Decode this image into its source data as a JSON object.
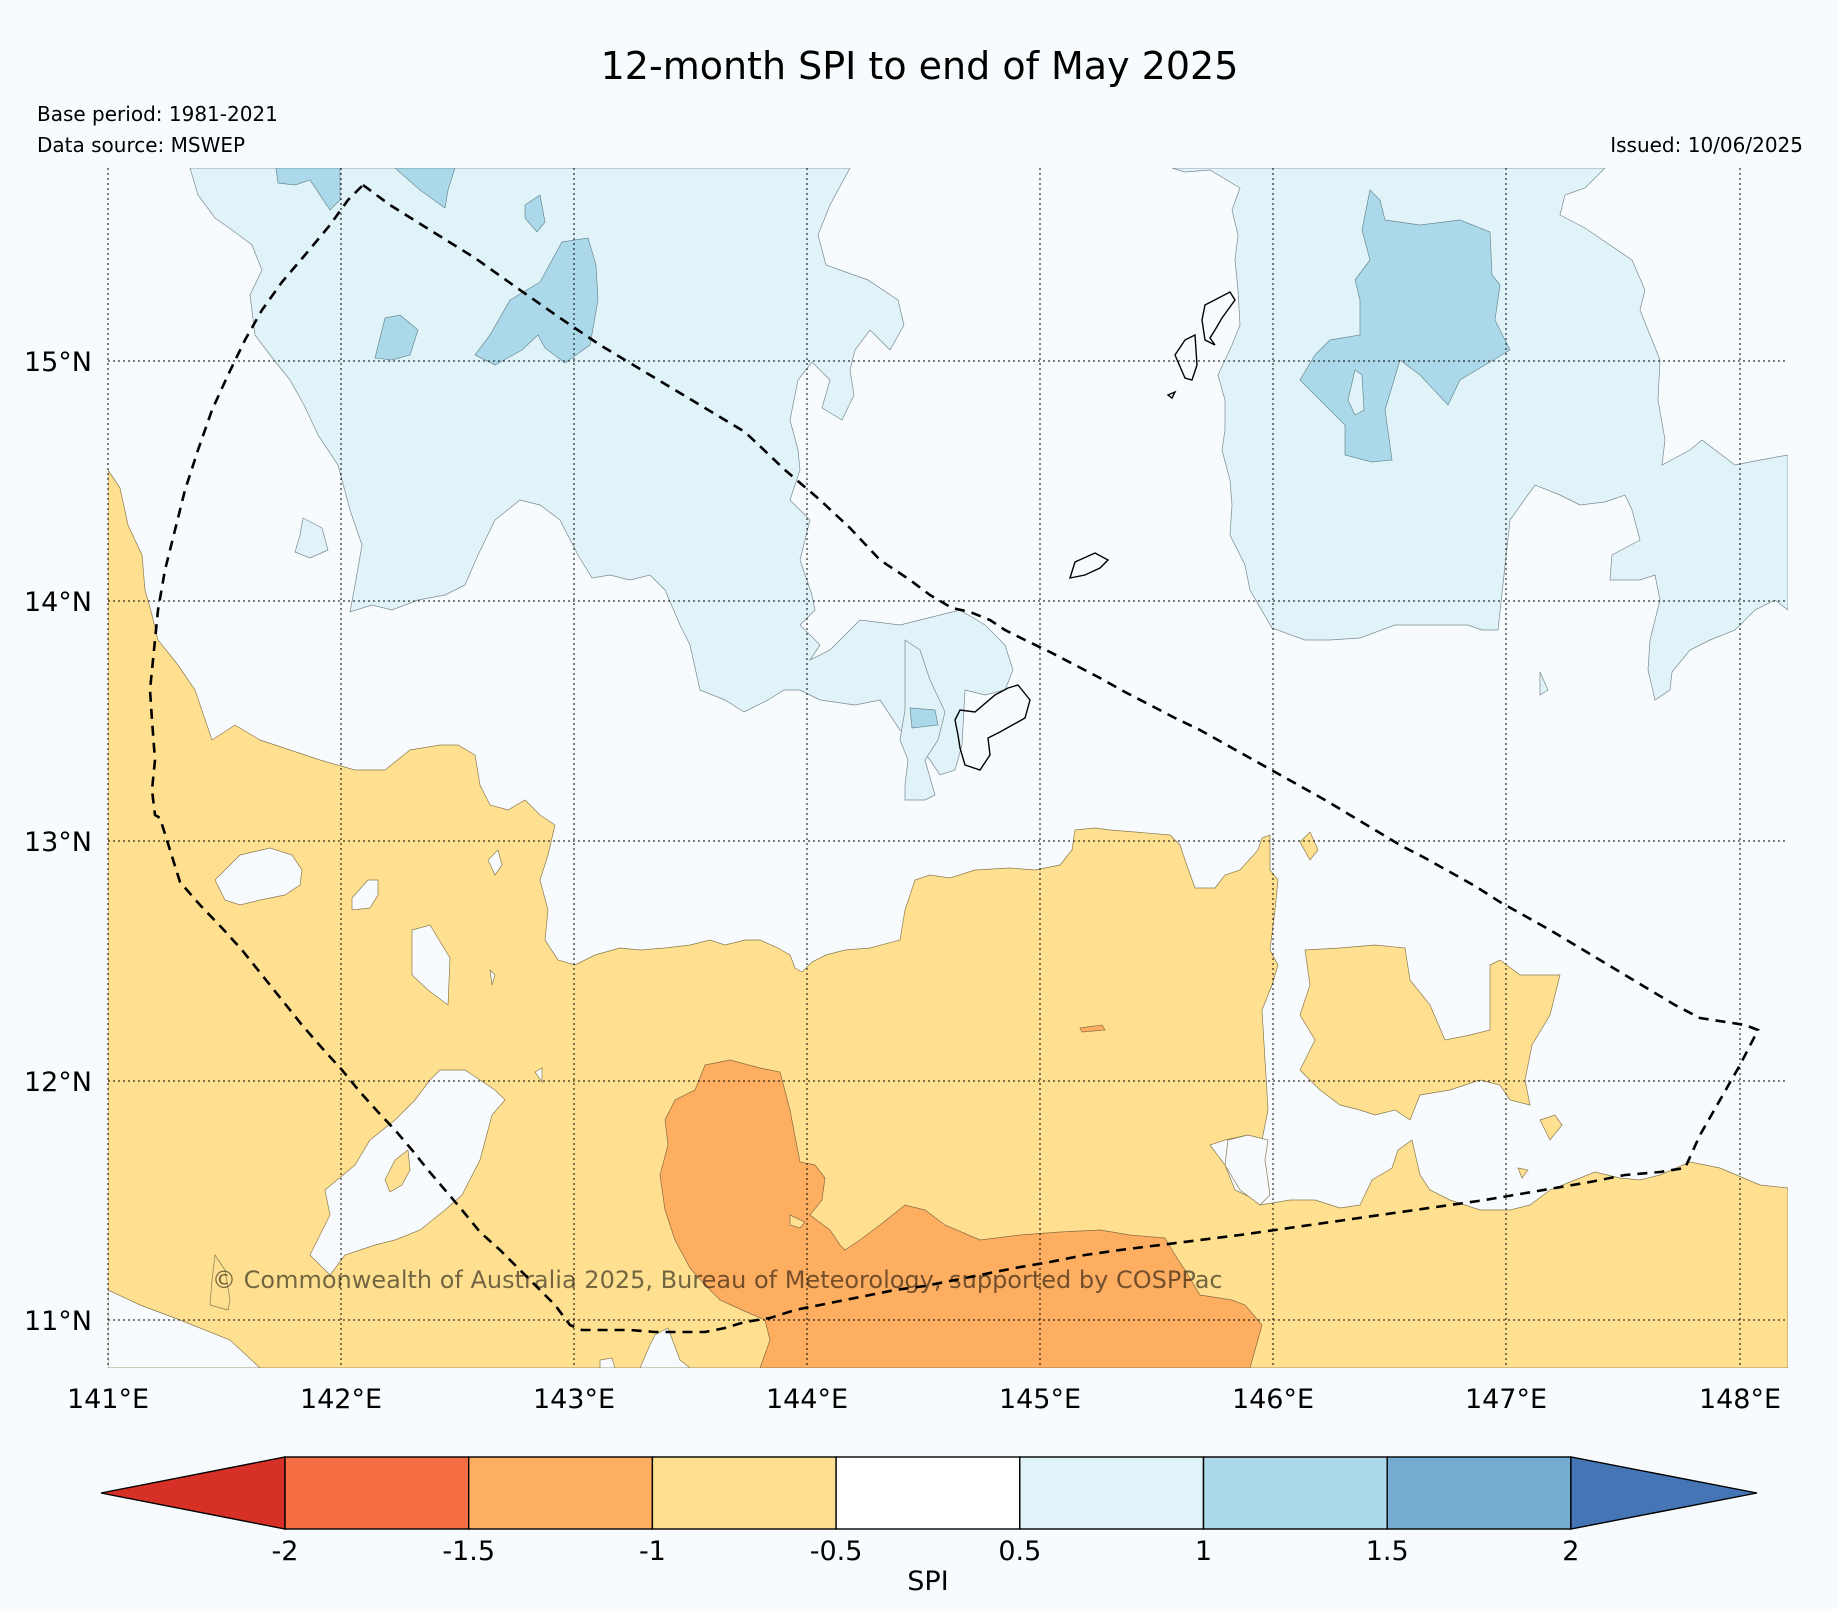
{
  "map": {
    "title": "12-month SPI to end of May 2025",
    "base_period": "Base period: 1981-2021",
    "data_source": "Data source: MSWEP",
    "issued": "Issued: 10/06/2025",
    "copyright": "© Commonwealth of Australia 2025, Bureau of Meteorology, supported by COSPPac",
    "lon_ticks": [
      "141°E",
      "142°E",
      "143°E",
      "144°E",
      "145°E",
      "146°E",
      "147°E",
      "148°E"
    ],
    "lat_ticks": [
      "15°N",
      "14°N",
      "13°N",
      "12°N",
      "11°N"
    ]
  },
  "colorbar": {
    "label": "SPI",
    "tick_labels": [
      "-2",
      "-1.5",
      "-1",
      "-0.5",
      "0.5",
      "1",
      "1.5",
      "2"
    ],
    "extend_low_color": "#d73027",
    "extend_high_color": "#4575b4",
    "bins": [
      {
        "range": "-2 to -1.5",
        "color": "#f46d43"
      },
      {
        "range": "-1.5 to -1",
        "color": "#fdae61"
      },
      {
        "range": "-1 to -0.5",
        "color": "#fee090"
      },
      {
        "range": "-0.5 to 0.5",
        "color": "#ffffff"
      },
      {
        "range": "0.5 to 1",
        "color": "#e0f3f8"
      },
      {
        "range": "1 to 1.5",
        "color": "#abd9e9"
      },
      {
        "range": "1.5 to 2",
        "color": "#74add1"
      }
    ]
  },
  "colors": {
    "background": "#f7fbfd",
    "dry_moderate": "#fee090",
    "dry_severe": "#fdae61",
    "wet_mild": "#e0f3f8",
    "wet_moderate": "#abd9e9"
  }
}
